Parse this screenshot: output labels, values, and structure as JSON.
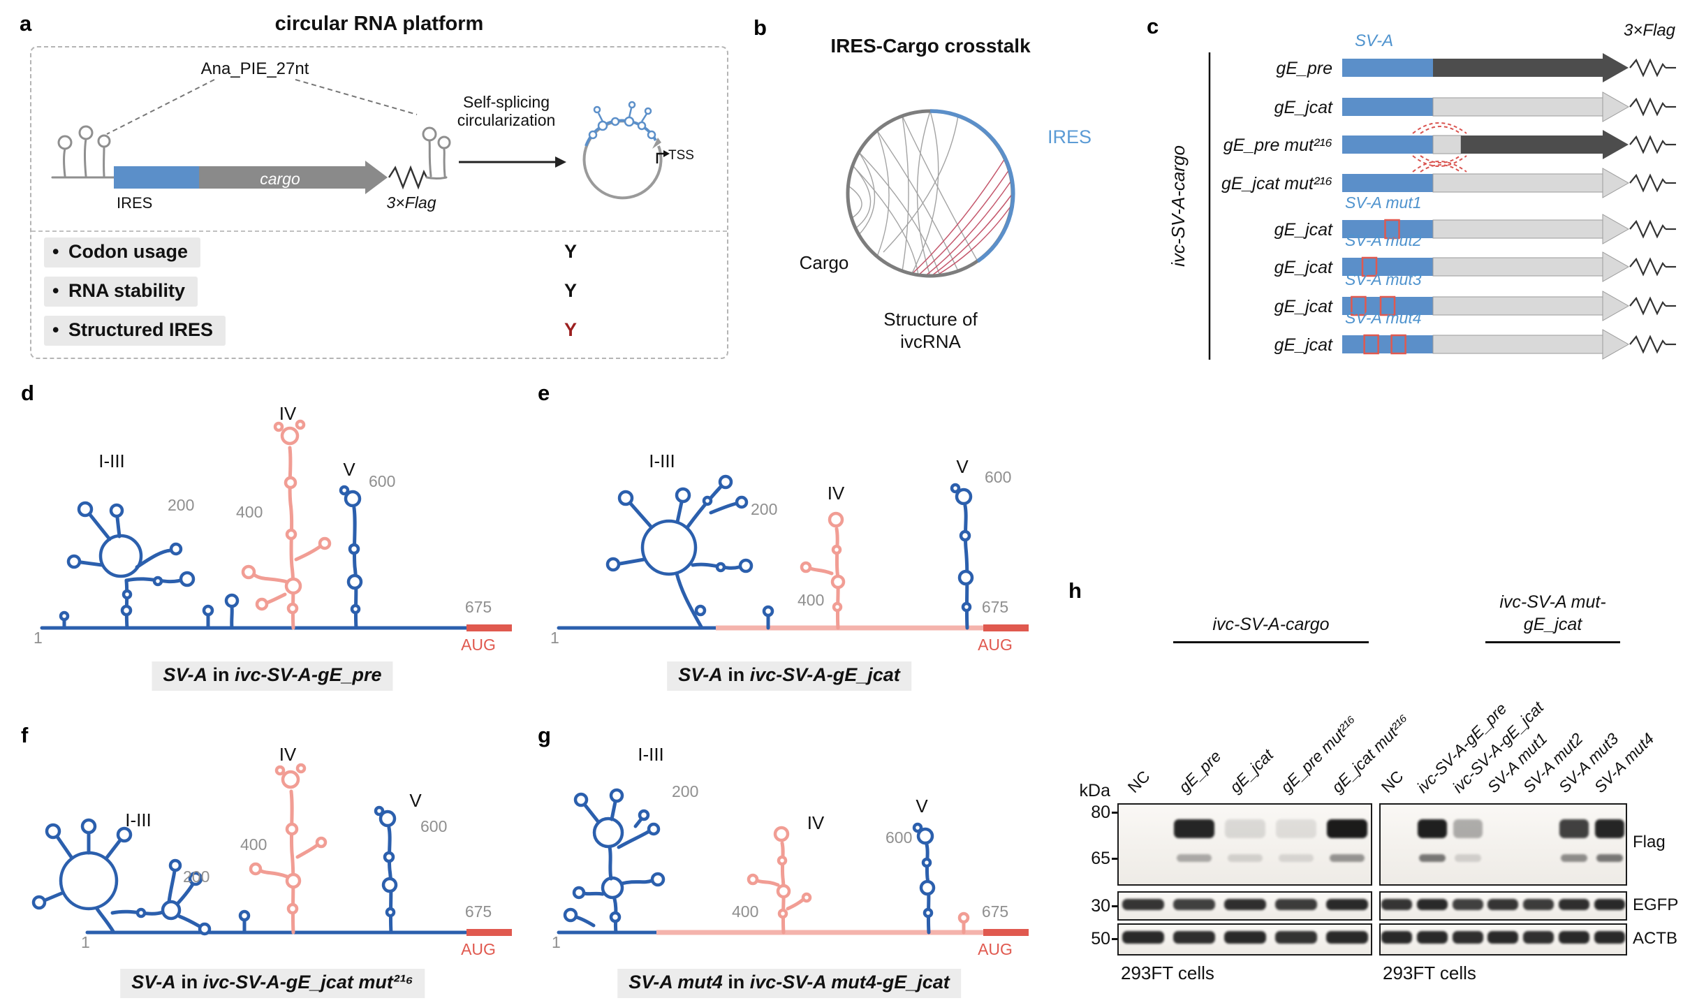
{
  "colors": {
    "structure_blue": "#2b5fad",
    "structure_pink": "#f19d94",
    "ires_blue": "#5b8fc9",
    "label_blue": "#5b9bd5",
    "aug_red": "#e0594f",
    "y_dark_red": "#9c1f1f"
  },
  "a": {
    "label": "a",
    "title": "circular RNA platform",
    "intron": "Ana_PIE_27nt",
    "ires": "IRES",
    "cargo": "cargo",
    "flag": "3×Flag",
    "splice_line1": "Self-splicing",
    "splice_line2": "circularization",
    "tss": "TSS",
    "bullets": [
      {
        "text": "Codon usage",
        "value": "Y",
        "color": "#111111"
      },
      {
        "text": "RNA stability",
        "value": "Y",
        "color": "#111111"
      },
      {
        "text": "Structured IRES",
        "value": "Y",
        "color": "#9c1f1f"
      }
    ]
  },
  "b": {
    "label": "b",
    "title": "IRES-Cargo crosstalk",
    "ires": "IRES",
    "cargo": "Cargo",
    "caption_line1": "Structure of",
    "caption_line2": "ivcRNA",
    "ires_color": "#5b9bd5"
  },
  "c": {
    "label": "c",
    "sva": "SV-A",
    "flag": "3×Flag",
    "group": "ivc-SV-A-cargo",
    "rows": [
      {
        "label": "gE_pre",
        "arrow": "dark",
        "spacer": false,
        "arcs": false,
        "arcs_below": false,
        "above": null,
        "redboxes": []
      },
      {
        "label": "gE_jcat",
        "arrow": "light",
        "spacer": false,
        "arcs": false,
        "arcs_below": false,
        "above": null,
        "redboxes": []
      },
      {
        "label": "gE_pre mut²¹⁶",
        "arrow": "dark",
        "spacer": true,
        "arcs": true,
        "arcs_below": true,
        "above": null,
        "redboxes": []
      },
      {
        "label": "gE_jcat mut²¹⁶",
        "arrow": "light",
        "spacer": false,
        "arcs": true,
        "arcs_below": false,
        "above": null,
        "redboxes": []
      },
      {
        "label": "gE_jcat",
        "arrow": "light",
        "spacer": false,
        "arcs": false,
        "arcs_below": false,
        "above": "SV-A mut1",
        "redboxes": [
          0.55
        ]
      },
      {
        "label": "gE_jcat",
        "arrow": "light",
        "spacer": false,
        "arcs": false,
        "arcs_below": false,
        "above": "SV-A mut2",
        "redboxes": [
          0.3
        ]
      },
      {
        "label": "gE_jcat",
        "arrow": "light",
        "spacer": false,
        "arcs": false,
        "arcs_below": false,
        "above": "SV-A mut3",
        "redboxes": [
          0.18,
          0.5
        ]
      },
      {
        "label": "gE_jcat",
        "arrow": "light",
        "spacer": false,
        "arcs": false,
        "arcs_below": false,
        "above": "SV-A mut4",
        "redboxes": [
          0.32,
          0.62
        ]
      }
    ]
  },
  "rna": {
    "domain_1_3": "I-III",
    "domain_4": "IV",
    "domain_5": "V",
    "pos_1": "1",
    "pos_200": "200",
    "pos_400": "400",
    "pos_600": "600",
    "pos_675": "675",
    "aug": "AUG"
  },
  "d": {
    "label": "d",
    "cap_a": "SV-A",
    "cap_in": " in ",
    "cap_b": "ivc-SV-A-gE_pre"
  },
  "e": {
    "label": "e",
    "cap_a": "SV-A",
    "cap_in": " in ",
    "cap_b": "ivc-SV-A-gE_jcat"
  },
  "f": {
    "label": "f",
    "cap_a": "SV-A",
    "cap_in": " in ",
    "cap_b": "ivc-SV-A-gE_jcat mut²¹⁶"
  },
  "g": {
    "label": "g",
    "cap_a": "SV-A mut4",
    "cap_in": " in ",
    "cap_b": "ivc-SV-A mut4-gE_jcat"
  },
  "h": {
    "label": "h",
    "kda": "kDa",
    "markers": [
      "80",
      "65",
      "30",
      "50"
    ],
    "group1": "ivc-SV-A-cargo",
    "group2_line1": "ivc-SV-A mut-",
    "group2_line2": "gE_jcat",
    "row_labels": [
      "Flag",
      "EGFP",
      "ACTB"
    ],
    "cells_left": "293FT cells",
    "cells_right": "293FT cells",
    "left": {
      "lanes": [
        "NC",
        "gE_pre",
        "gE_jcat",
        "gE_pre mut²¹⁶",
        "gE_jcat mut²¹⁶"
      ],
      "flag_main": [
        0,
        0.92,
        0.12,
        0.1,
        0.97
      ],
      "flag_sub": [
        0,
        0.32,
        0.14,
        0.12,
        0.42
      ],
      "egfp": [
        0.85,
        0.8,
        0.88,
        0.82,
        0.9
      ],
      "actb": [
        0.9,
        0.88,
        0.9,
        0.86,
        0.9
      ]
    },
    "right": {
      "lanes": [
        "NC",
        "ivc-SV-A-gE_pre",
        "ivc-SV-A-gE_jcat",
        "SV-A mut1",
        "SV-A mut2",
        "SV-A mut3",
        "SV-A mut4"
      ],
      "flag_main": [
        0,
        0.95,
        0.32,
        0,
        0,
        0.8,
        0.92
      ],
      "flag_sub": [
        0,
        0.55,
        0.15,
        0,
        0,
        0.45,
        0.55
      ],
      "egfp": [
        0.85,
        0.9,
        0.8,
        0.85,
        0.82,
        0.88,
        0.9
      ],
      "actb": [
        0.9,
        0.9,
        0.88,
        0.9,
        0.87,
        0.9,
        0.9
      ]
    }
  }
}
